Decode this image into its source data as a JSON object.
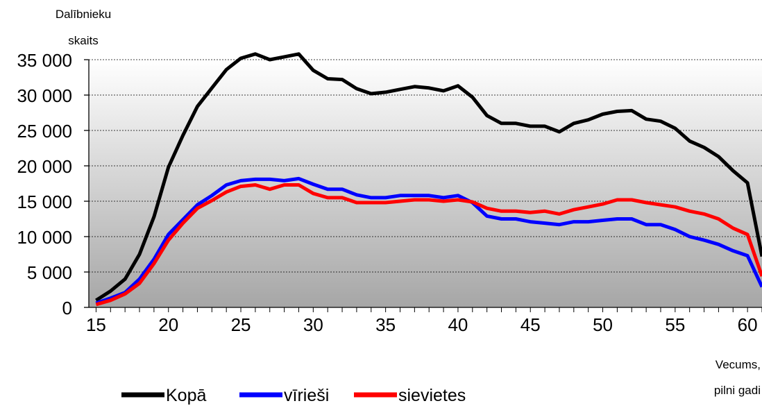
{
  "chart_data": {
    "type": "line",
    "title": "",
    "ylabel": "Dalībnieku skaits",
    "xlabel": "Vecums, pilni gadi",
    "ylim": [
      0,
      35000
    ],
    "xlim": [
      14.5,
      61
    ],
    "yticks": [
      0,
      5000,
      10000,
      15000,
      20000,
      25000,
      30000,
      35000
    ],
    "ytick_labels": [
      "0",
      "5 000",
      "10 000",
      "15 000",
      "20 000",
      "25 000",
      "30 000",
      "35 000"
    ],
    "xticks": [
      15,
      20,
      25,
      30,
      35,
      40,
      45,
      50,
      55,
      60
    ],
    "xtick_labels": [
      "15",
      "20",
      "25",
      "30",
      "35",
      "40",
      "45",
      "50",
      "55",
      "60"
    ],
    "grid": true,
    "legend_position": "bottom",
    "x": [
      15,
      16,
      17,
      18,
      19,
      20,
      21,
      22,
      23,
      24,
      25,
      26,
      27,
      28,
      29,
      30,
      31,
      32,
      33,
      34,
      35,
      36,
      37,
      38,
      39,
      40,
      41,
      42,
      43,
      44,
      45,
      46,
      47,
      48,
      49,
      50,
      51,
      52,
      53,
      54,
      55,
      56,
      57,
      58,
      59,
      60,
      61
    ],
    "series": [
      {
        "name": "Kopā",
        "color": "#000000",
        "values": [
          1000,
          2300,
          4000,
          7500,
          12800,
          19800,
          24300,
          28400,
          31000,
          33600,
          35200,
          35800,
          35000,
          35400,
          35800,
          33500,
          32300,
          32200,
          30900,
          30200,
          30400,
          30800,
          31200,
          31000,
          30600,
          31300,
          29700,
          27100,
          26000,
          26000,
          25600,
          25600,
          24800,
          26000,
          26500,
          27300,
          27700,
          27800,
          26600,
          26300,
          25300,
          23500,
          22600,
          21300,
          19300,
          17600,
          7200
        ]
      },
      {
        "name": "vīrieši",
        "color": "#0000ff",
        "values": [
          600,
          1300,
          2100,
          4000,
          6800,
          10300,
          12400,
          14500,
          15800,
          17300,
          17900,
          18100,
          18100,
          17900,
          18200,
          17400,
          16700,
          16700,
          15900,
          15500,
          15500,
          15800,
          15800,
          15800,
          15500,
          15800,
          14800,
          12900,
          12500,
          12500,
          12100,
          11900,
          11700,
          12100,
          12100,
          12300,
          12500,
          12500,
          11700,
          11700,
          11000,
          10000,
          9500,
          8900,
          8000,
          7300,
          2900
        ]
      },
      {
        "name": "sievietes",
        "color": "#ff0000",
        "values": [
          400,
          1000,
          1900,
          3400,
          6200,
          9500,
          11900,
          14000,
          15100,
          16300,
          17100,
          17300,
          16700,
          17300,
          17300,
          16100,
          15500,
          15500,
          14800,
          14800,
          14800,
          15000,
          15200,
          15200,
          15000,
          15200,
          14900,
          14000,
          13600,
          13600,
          13400,
          13600,
          13200,
          13800,
          14200,
          14600,
          15200,
          15200,
          14800,
          14500,
          14200,
          13600,
          13200,
          12500,
          11200,
          10300,
          4400
        ]
      }
    ]
  }
}
